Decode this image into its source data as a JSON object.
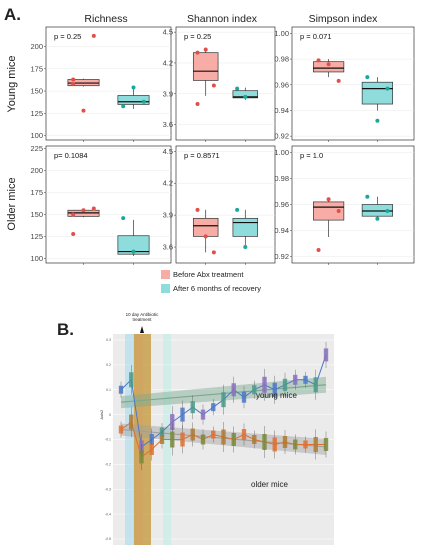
{
  "figure": {
    "panel_a_label": "A.",
    "panel_b_label": "B."
  },
  "colors": {
    "before": "#f8aca6",
    "after": "#8fdcdc",
    "before_point": "#e0504a",
    "after_point": "#1aa89a"
  },
  "chart_data": [
    {
      "type": "box",
      "id": "young-richness",
      "column_title": "Richness",
      "row_title": "Young mice",
      "annotation": "p = 0.25",
      "ylim": [
        95,
        222
      ],
      "yticks": [
        100,
        125,
        150,
        175,
        200,
        225
      ],
      "series": [
        {
          "name": "Before Abx treatment",
          "box": {
            "min": 155,
            "q1": 156,
            "median": 159,
            "q3": 163,
            "max": 164
          },
          "points": [
            163,
            128,
            212,
            158
          ]
        },
        {
          "name": "After 6 months of recovery",
          "box": {
            "min": 130,
            "q1": 135,
            "median": 138,
            "q3": 145,
            "max": 153
          },
          "points": [
            133,
            154,
            138
          ]
        }
      ]
    },
    {
      "type": "box",
      "id": "young-shannon",
      "column_title": "Shannon index",
      "row_title": "Young mice",
      "annotation": "p = 0.25",
      "ylim": [
        3.45,
        4.55
      ],
      "yticks": [
        3.6,
        3.9,
        4.2,
        4.5
      ],
      "series": [
        {
          "name": "Before Abx treatment",
          "box": {
            "min": 3.88,
            "q1": 4.03,
            "median": 4.12,
            "q3": 4.3,
            "max": 4.35
          },
          "points": [
            4.3,
            4.33,
            3.98,
            3.8
          ]
        },
        {
          "name": "After 6 months of recovery",
          "box": {
            "min": 3.84,
            "q1": 3.86,
            "median": 3.87,
            "q3": 3.93,
            "max": 3.96
          },
          "points": [
            3.95,
            3.87
          ]
        }
      ]
    },
    {
      "type": "box",
      "id": "young-simpson",
      "column_title": "Simpson index",
      "row_title": "Young mice",
      "annotation": "p = 0.071",
      "ylim": [
        0.917,
        1.005
      ],
      "yticks": [
        0.92,
        0.94,
        0.96,
        0.98,
        1.0
      ],
      "series": [
        {
          "name": "Before Abx treatment",
          "box": {
            "min": 0.966,
            "q1": 0.97,
            "median": 0.973,
            "q3": 0.978,
            "max": 0.98
          },
          "points": [
            0.979,
            0.976,
            0.963
          ]
        },
        {
          "name": "After 6 months of recovery",
          "box": {
            "min": 0.94,
            "q1": 0.945,
            "median": 0.957,
            "q3": 0.962,
            "max": 0.966
          },
          "points": [
            0.966,
            0.932,
            0.957
          ]
        }
      ]
    },
    {
      "type": "box",
      "id": "older-richness",
      "column_title": "",
      "row_title": "Older mice",
      "annotation": "p= 0.1084",
      "ylim": [
        95,
        228
      ],
      "yticks": [
        100,
        125,
        150,
        175,
        200,
        225
      ],
      "series": [
        {
          "name": "Before Abx treatment",
          "box": {
            "min": 147,
            "q1": 148,
            "median": 152,
            "q3": 155,
            "max": 157
          },
          "points": [
            128,
            155,
            157,
            150
          ]
        },
        {
          "name": "After 6 months of recovery",
          "box": {
            "min": 103,
            "q1": 105,
            "median": 108,
            "q3": 126,
            "max": 144
          },
          "points": [
            146,
            108
          ]
        }
      ]
    },
    {
      "type": "box",
      "id": "older-shannon",
      "column_title": "",
      "row_title": "Older mice",
      "annotation": "p = 0.8571",
      "ylim": [
        3.45,
        4.55
      ],
      "yticks": [
        3.6,
        3.9,
        4.2,
        4.5
      ],
      "series": [
        {
          "name": "Before Abx treatment",
          "box": {
            "min": 3.55,
            "q1": 3.7,
            "median": 3.8,
            "q3": 3.87,
            "max": 3.95
          },
          "points": [
            3.95,
            3.7,
            3.55
          ]
        },
        {
          "name": "After 6 months of recovery",
          "box": {
            "min": 3.6,
            "q1": 3.7,
            "median": 3.83,
            "q3": 3.87,
            "max": 3.95
          },
          "points": [
            3.95,
            3.6
          ]
        }
      ]
    },
    {
      "type": "box",
      "id": "older-simpson",
      "column_title": "",
      "row_title": "Older mice",
      "annotation": "p = 1.0",
      "ylim": [
        0.915,
        1.005
      ],
      "yticks": [
        0.92,
        0.94,
        0.96,
        0.98,
        1.0
      ],
      "series": [
        {
          "name": "Before Abx treatment",
          "box": {
            "min": 0.935,
            "q1": 0.948,
            "median": 0.958,
            "q3": 0.962,
            "max": 0.964
          },
          "points": [
            0.925,
            0.964,
            0.955
          ]
        },
        {
          "name": "After 6 months of recovery",
          "box": {
            "min": 0.95,
            "q1": 0.951,
            "median": 0.955,
            "q3": 0.96,
            "max": 0.966
          },
          "points": [
            0.966,
            0.949,
            0.955
          ]
        }
      ]
    },
    {
      "type": "line",
      "id": "panel-b",
      "ylabel": "Axis2",
      "yticks": [
        "0.3",
        "0.2",
        "0.1",
        "0",
        "-0.1",
        "-0.2",
        "-0.3",
        "-0.4",
        "-0.5"
      ],
      "ylim": [
        -0.5,
        0.3
      ],
      "treatment_label": "10 day Antibiotic treatment",
      "series_labels": [
        "young mice",
        "older mice"
      ],
      "series": [
        {
          "name": "young mice",
          "color": "#4b78c8",
          "x": [
            1,
            2,
            3,
            4,
            5,
            6,
            7,
            8,
            9,
            10,
            11,
            12,
            13,
            14,
            15,
            16,
            17,
            18,
            19,
            20,
            21
          ],
          "y": [
            0.1,
            0.14,
            -0.13,
            -0.1,
            -0.07,
            -0.03,
            0.0,
            0.03,
            0.0,
            0.03,
            0.06,
            0.1,
            0.07,
            0.1,
            0.12,
            0.1,
            0.12,
            0.14,
            0.14,
            0.12,
            0.24
          ],
          "trend": [
            0.05,
            0.12
          ]
        },
        {
          "name": "older mice",
          "color": "#e07030",
          "x": [
            1,
            2,
            3,
            4,
            5,
            6,
            7,
            8,
            9,
            10,
            11,
            12,
            13,
            14,
            15,
            16,
            17,
            18,
            19,
            20,
            21
          ],
          "y": [
            -0.06,
            -0.03,
            -0.17,
            -0.14,
            -0.1,
            -0.1,
            -0.1,
            -0.08,
            -0.1,
            -0.08,
            -0.09,
            -0.1,
            -0.08,
            -0.1,
            -0.11,
            -0.12,
            -0.11,
            -0.12,
            -0.12,
            -0.12,
            -0.12
          ],
          "trend": [
            -0.06,
            -0.13
          ]
        }
      ]
    }
  ],
  "legend": {
    "before_label": "Before Abx treatment",
    "after_label": "After 6 months of recovery"
  }
}
